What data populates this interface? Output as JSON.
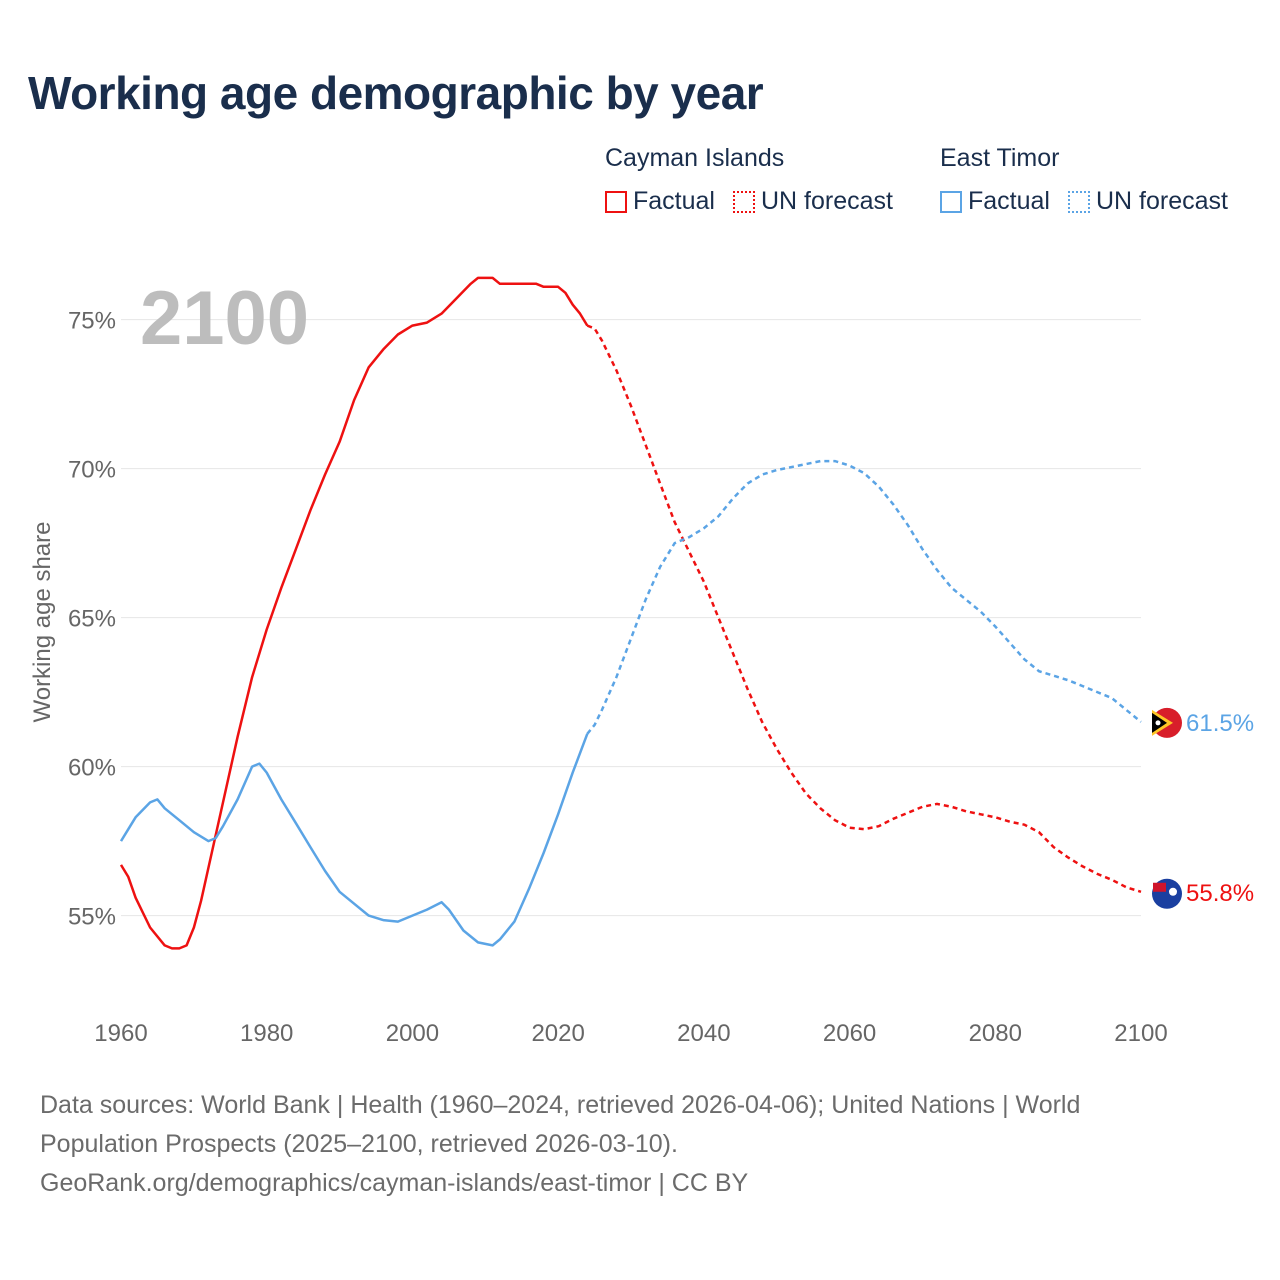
{
  "title": "Working age demographic by year",
  "legend": {
    "cayman": {
      "name": "Cayman Islands",
      "factual": "Factual",
      "forecast": "UN forecast",
      "color": "#ee1111"
    },
    "timor": {
      "name": "East Timor",
      "factual": "Factual",
      "forecast": "UN forecast",
      "color": "#5ba4e5"
    }
  },
  "footer": {
    "line1": "Data sources: World Bank | Health (1960–2024, retrieved 2026-04-06); United Nations | World",
    "line2": "Population Prospects (2025–2100, retrieved 2026-03-10).",
    "line3": "GeoRank.org/demographics/cayman-islands/east-timor | CC BY"
  },
  "chart_data": {
    "type": "line",
    "year_label": "2100",
    "ylabel": "Working age share",
    "xlim": [
      1960,
      2100
    ],
    "ylim": [
      52,
      77
    ],
    "x_ticks": [
      "1960",
      "1980",
      "2000",
      "2020",
      "2040",
      "2060",
      "2080",
      "2100"
    ],
    "y_ticks": [
      {
        "value": 55,
        "label": "55%"
      },
      {
        "value": 60,
        "label": "60%"
      },
      {
        "value": 65,
        "label": "65%"
      },
      {
        "value": 70,
        "label": "70%"
      },
      {
        "value": 75,
        "label": "75%"
      }
    ],
    "forecast_start": 2024,
    "series": [
      {
        "name": "Cayman Islands",
        "color": "#ee1111",
        "end_label": "55.8%",
        "flag": "cayman-islands-flag-icon",
        "points": [
          [
            1960,
            56.7
          ],
          [
            1961,
            56.3
          ],
          [
            1962,
            55.6
          ],
          [
            1964,
            54.6
          ],
          [
            1966,
            54.0
          ],
          [
            1967,
            53.9
          ],
          [
            1968,
            53.9
          ],
          [
            1969,
            54.0
          ],
          [
            1970,
            54.6
          ],
          [
            1971,
            55.5
          ],
          [
            1972,
            56.6
          ],
          [
            1974,
            58.8
          ],
          [
            1976,
            61.0
          ],
          [
            1978,
            63.0
          ],
          [
            1980,
            64.6
          ],
          [
            1982,
            66.0
          ],
          [
            1984,
            67.3
          ],
          [
            1986,
            68.6
          ],
          [
            1988,
            69.8
          ],
          [
            1990,
            70.9
          ],
          [
            1992,
            72.3
          ],
          [
            1994,
            73.4
          ],
          [
            1996,
            74.0
          ],
          [
            1998,
            74.5
          ],
          [
            2000,
            74.8
          ],
          [
            2002,
            74.9
          ],
          [
            2004,
            75.2
          ],
          [
            2006,
            75.7
          ],
          [
            2008,
            76.2
          ],
          [
            2009,
            76.4
          ],
          [
            2011,
            76.4
          ],
          [
            2012,
            76.2
          ],
          [
            2015,
            76.2
          ],
          [
            2017,
            76.2
          ],
          [
            2018,
            76.1
          ],
          [
            2020,
            76.1
          ],
          [
            2021,
            75.9
          ],
          [
            2022,
            75.5
          ],
          [
            2023,
            75.2
          ],
          [
            2024,
            74.8
          ],
          [
            2025,
            74.7
          ],
          [
            2026,
            74.3
          ],
          [
            2028,
            73.3
          ],
          [
            2030,
            72.1
          ],
          [
            2032,
            70.8
          ],
          [
            2034,
            69.5
          ],
          [
            2036,
            68.2
          ],
          [
            2038,
            67.2
          ],
          [
            2040,
            66.2
          ],
          [
            2042,
            65.0
          ],
          [
            2044,
            63.8
          ],
          [
            2046,
            62.6
          ],
          [
            2048,
            61.5
          ],
          [
            2050,
            60.6
          ],
          [
            2052,
            59.8
          ],
          [
            2054,
            59.1
          ],
          [
            2056,
            58.6
          ],
          [
            2058,
            58.2
          ],
          [
            2060,
            57.95
          ],
          [
            2062,
            57.9
          ],
          [
            2064,
            58.0
          ],
          [
            2066,
            58.25
          ],
          [
            2068,
            58.45
          ],
          [
            2070,
            58.65
          ],
          [
            2072,
            58.75
          ],
          [
            2074,
            58.65
          ],
          [
            2076,
            58.5
          ],
          [
            2078,
            58.4
          ],
          [
            2080,
            58.3
          ],
          [
            2082,
            58.15
          ],
          [
            2084,
            58.05
          ],
          [
            2086,
            57.8
          ],
          [
            2088,
            57.3
          ],
          [
            2090,
            56.95
          ],
          [
            2092,
            56.65
          ],
          [
            2094,
            56.4
          ],
          [
            2096,
            56.2
          ],
          [
            2098,
            55.95
          ],
          [
            2100,
            55.8
          ]
        ]
      },
      {
        "name": "East Timor",
        "color": "#5ba4e5",
        "end_label": "61.5%",
        "flag": "east-timor-flag-icon",
        "points": [
          [
            1960,
            57.5
          ],
          [
            1962,
            58.3
          ],
          [
            1964,
            58.8
          ],
          [
            1965,
            58.9
          ],
          [
            1966,
            58.6
          ],
          [
            1968,
            58.2
          ],
          [
            1970,
            57.8
          ],
          [
            1972,
            57.5
          ],
          [
            1973,
            57.6
          ],
          [
            1974,
            58.0
          ],
          [
            1976,
            58.9
          ],
          [
            1978,
            60.0
          ],
          [
            1979,
            60.1
          ],
          [
            1980,
            59.8
          ],
          [
            1982,
            58.9
          ],
          [
            1984,
            58.1
          ],
          [
            1986,
            57.3
          ],
          [
            1988,
            56.5
          ],
          [
            1990,
            55.8
          ],
          [
            1992,
            55.4
          ],
          [
            1994,
            55.0
          ],
          [
            1996,
            54.85
          ],
          [
            1998,
            54.8
          ],
          [
            2000,
            55.0
          ],
          [
            2002,
            55.2
          ],
          [
            2004,
            55.45
          ],
          [
            2005,
            55.2
          ],
          [
            2007,
            54.5
          ],
          [
            2009,
            54.1
          ],
          [
            2011,
            54.0
          ],
          [
            2012,
            54.2
          ],
          [
            2014,
            54.8
          ],
          [
            2016,
            55.9
          ],
          [
            2018,
            57.1
          ],
          [
            2020,
            58.4
          ],
          [
            2022,
            59.8
          ],
          [
            2024,
            61.1
          ],
          [
            2025,
            61.4
          ],
          [
            2026,
            61.9
          ],
          [
            2028,
            63.0
          ],
          [
            2030,
            64.3
          ],
          [
            2032,
            65.6
          ],
          [
            2034,
            66.7
          ],
          [
            2036,
            67.5
          ],
          [
            2038,
            67.7
          ],
          [
            2040,
            68.0
          ],
          [
            2042,
            68.4
          ],
          [
            2044,
            69.0
          ],
          [
            2046,
            69.5
          ],
          [
            2048,
            69.8
          ],
          [
            2050,
            69.95
          ],
          [
            2052,
            70.05
          ],
          [
            2054,
            70.15
          ],
          [
            2056,
            70.25
          ],
          [
            2058,
            70.25
          ],
          [
            2060,
            70.1
          ],
          [
            2062,
            69.85
          ],
          [
            2064,
            69.4
          ],
          [
            2066,
            68.8
          ],
          [
            2068,
            68.1
          ],
          [
            2070,
            67.3
          ],
          [
            2072,
            66.6
          ],
          [
            2074,
            66.0
          ],
          [
            2076,
            65.6
          ],
          [
            2078,
            65.2
          ],
          [
            2080,
            64.7
          ],
          [
            2082,
            64.15
          ],
          [
            2084,
            63.6
          ],
          [
            2086,
            63.2
          ],
          [
            2088,
            63.05
          ],
          [
            2090,
            62.9
          ],
          [
            2092,
            62.7
          ],
          [
            2094,
            62.5
          ],
          [
            2096,
            62.3
          ],
          [
            2098,
            61.9
          ],
          [
            2100,
            61.5
          ]
        ]
      }
    ]
  },
  "sources": "GeoRank.org"
}
